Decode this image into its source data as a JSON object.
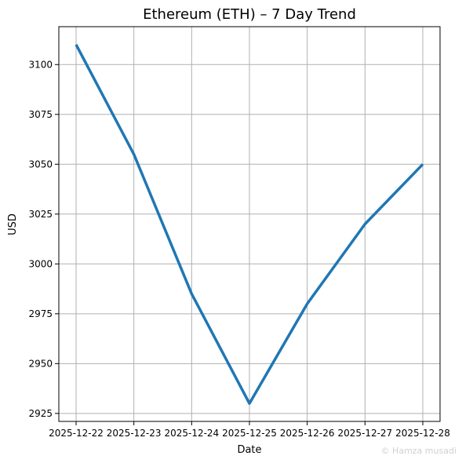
{
  "chart_data": {
    "type": "line",
    "title": "Ethereum (ETH) – 7 Day Trend",
    "xlabel": "Date",
    "ylabel": "USD",
    "x": [
      "2025-12-22",
      "2025-12-23",
      "2025-12-24",
      "2025-12-25",
      "2025-12-26",
      "2025-12-27",
      "2025-12-28"
    ],
    "series": [
      {
        "values": [
          3110,
          3055,
          2985,
          2930,
          2980,
          3020,
          3050
        ],
        "color": "#1f77b4"
      }
    ],
    "yticks": [
      2925,
      2950,
      2975,
      3000,
      3025,
      3050,
      3075,
      3100
    ],
    "ylim": [
      2921,
      3119
    ],
    "grid": true,
    "legend": "none"
  },
  "watermark": "© Hamza musadi"
}
